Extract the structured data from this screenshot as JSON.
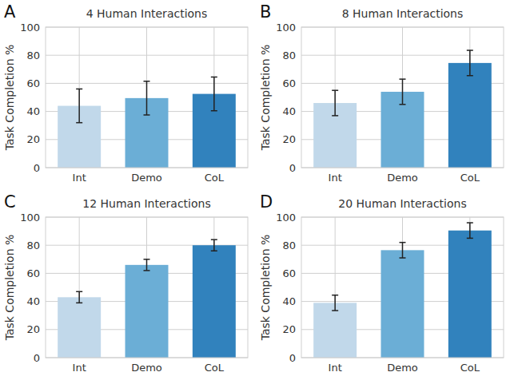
{
  "chart_data": [
    {
      "type": "bar",
      "annotation": "A",
      "title": "4 Human Interactions",
      "y_label": "Task Completion %",
      "categories": [
        "Int",
        "Demo",
        "CoL"
      ],
      "values": [
        44,
        49.5,
        52.5
      ],
      "errors": [
        12,
        12,
        12
      ],
      "colors": [
        "#c1d8ea",
        "#6baed6",
        "#3182bd"
      ],
      "ylim": [
        0,
        100
      ],
      "yticks": [
        0,
        20,
        40,
        60,
        80,
        100
      ],
      "grid": true
    },
    {
      "type": "bar",
      "annotation": "B",
      "title": "8 Human Interactions",
      "y_label": "Task Completion %",
      "categories": [
        "Int",
        "Demo",
        "CoL"
      ],
      "values": [
        46,
        54,
        74.5
      ],
      "errors": [
        9,
        9,
        9
      ],
      "colors": [
        "#c1d8ea",
        "#6baed6",
        "#3182bd"
      ],
      "ylim": [
        0,
        100
      ],
      "yticks": [
        0,
        20,
        40,
        60,
        80,
        100
      ],
      "grid": true
    },
    {
      "type": "bar",
      "annotation": "C",
      "title": "12 Human Interactions",
      "y_label": "Task Completion %",
      "categories": [
        "Int",
        "Demo",
        "CoL"
      ],
      "values": [
        43,
        66,
        80
      ],
      "errors": [
        4,
        4,
        4
      ],
      "colors": [
        "#c1d8ea",
        "#6baed6",
        "#3182bd"
      ],
      "ylim": [
        0,
        100
      ],
      "yticks": [
        0,
        20,
        40,
        60,
        80,
        100
      ],
      "grid": true
    },
    {
      "type": "bar",
      "annotation": "D",
      "title": "20 Human Interactions",
      "y_label": "Task Completion %",
      "categories": [
        "Int",
        "Demo",
        "CoL"
      ],
      "values": [
        39,
        76.5,
        90.5
      ],
      "errors": [
        5.5,
        5.5,
        5.5
      ],
      "colors": [
        "#c1d8ea",
        "#6baed6",
        "#3182bd"
      ],
      "ylim": [
        0,
        100
      ],
      "yticks": [
        0,
        20,
        40,
        60,
        80,
        100
      ],
      "grid": true
    }
  ]
}
